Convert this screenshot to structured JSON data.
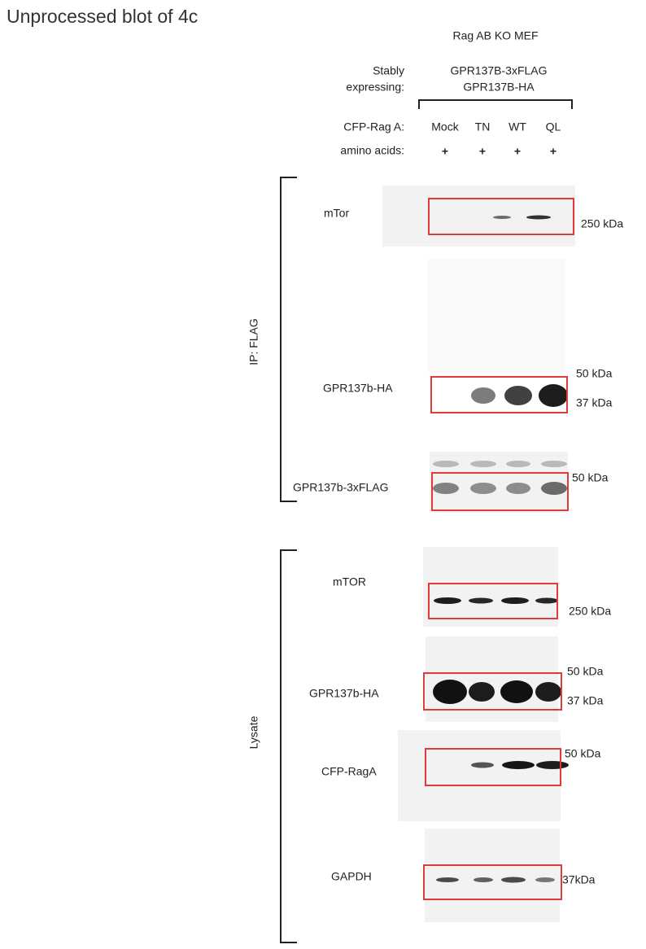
{
  "title": "Unprocessed blot of 4c",
  "cell_line": "Rag AB KO MEF",
  "stably_label": [
    "Stably",
    "expressing:"
  ],
  "stably_constructs": [
    "GPR137B-3xFLAG",
    "GPR137B-HA"
  ],
  "conditions": {
    "label": "CFP-Rag A:",
    "lanes": [
      "Mock",
      "TN",
      "WT",
      "QL"
    ]
  },
  "amino_acids": {
    "label": "amino acids:",
    "values": [
      "+",
      "+",
      "+",
      "+"
    ]
  },
  "groups": [
    {
      "label": "IP: FLAG",
      "blots": [
        {
          "label": "mTor",
          "markers": [
            "250 kDa"
          ]
        },
        {
          "label": "GPR137b-HA",
          "markers": [
            "50 kDa",
            "37 kDa"
          ]
        },
        {
          "label": "GPR137b-3xFLAG",
          "markers": [
            "50 kDa"
          ]
        }
      ]
    },
    {
      "label": "Lysate",
      "blots": [
        {
          "label": "mTOR",
          "markers": [
            "250 kDa"
          ]
        },
        {
          "label": "GPR137b-HA",
          "markers": [
            "50 kDa",
            "37 kDa"
          ]
        },
        {
          "label": "CFP-RagA",
          "markers": [
            "50 kDa"
          ]
        },
        {
          "label": "GAPDH",
          "markers": [
            "37kDa"
          ]
        }
      ]
    }
  ]
}
